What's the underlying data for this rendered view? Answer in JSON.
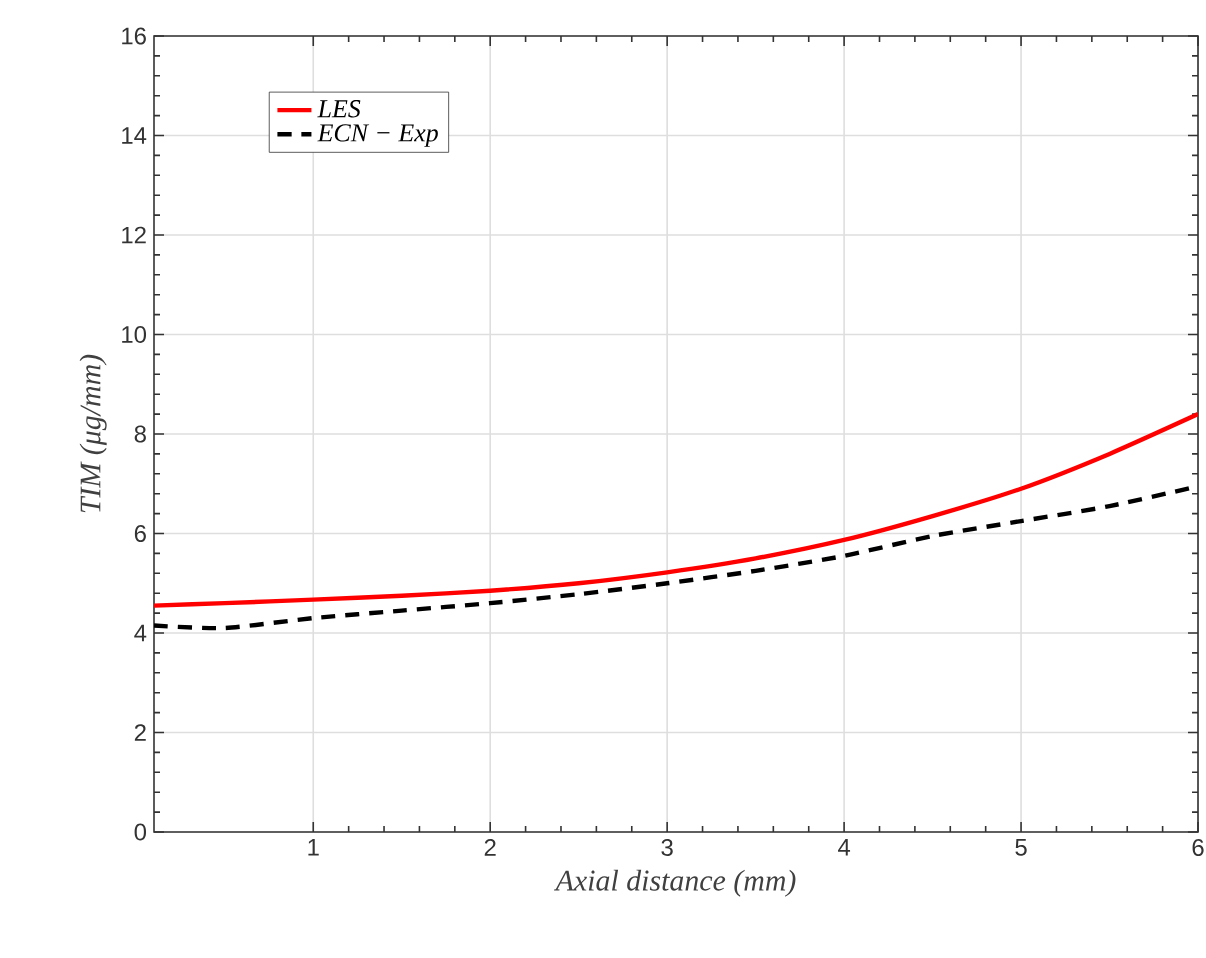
{
  "chart_data": {
    "type": "line",
    "xlabel": "Axial distance (mm)",
    "ylabel": "TIM (μg/mm)",
    "xlim": [
      0.1,
      6
    ],
    "ylim": [
      0,
      16
    ],
    "xticks": [
      1,
      2,
      3,
      4,
      5,
      6
    ],
    "yticks": [
      0,
      2,
      4,
      6,
      8,
      10,
      12,
      14,
      16
    ],
    "grid": true,
    "legend": "top left",
    "series": [
      {
        "name": "LES",
        "color": "#ff0000",
        "line_style": "solid",
        "x": [
          0.1,
          0.5,
          1,
          1.5,
          2,
          2.5,
          3,
          3.5,
          4,
          4.5,
          5,
          5.5,
          6
        ],
        "values": [
          4.55,
          4.6,
          4.67,
          4.75,
          4.85,
          5.0,
          5.22,
          5.5,
          5.87,
          6.35,
          6.9,
          7.6,
          8.4
        ]
      },
      {
        "name": "ECN − Exp",
        "color": "#000000",
        "line_style": "dashed",
        "x": [
          0.1,
          0.5,
          1,
          1.5,
          2,
          2.5,
          3,
          3.5,
          4,
          4.5,
          5,
          5.5,
          6
        ],
        "values": [
          4.15,
          4.1,
          4.3,
          4.45,
          4.6,
          4.78,
          5.0,
          5.25,
          5.55,
          5.95,
          6.25,
          6.55,
          6.95
        ]
      }
    ]
  }
}
